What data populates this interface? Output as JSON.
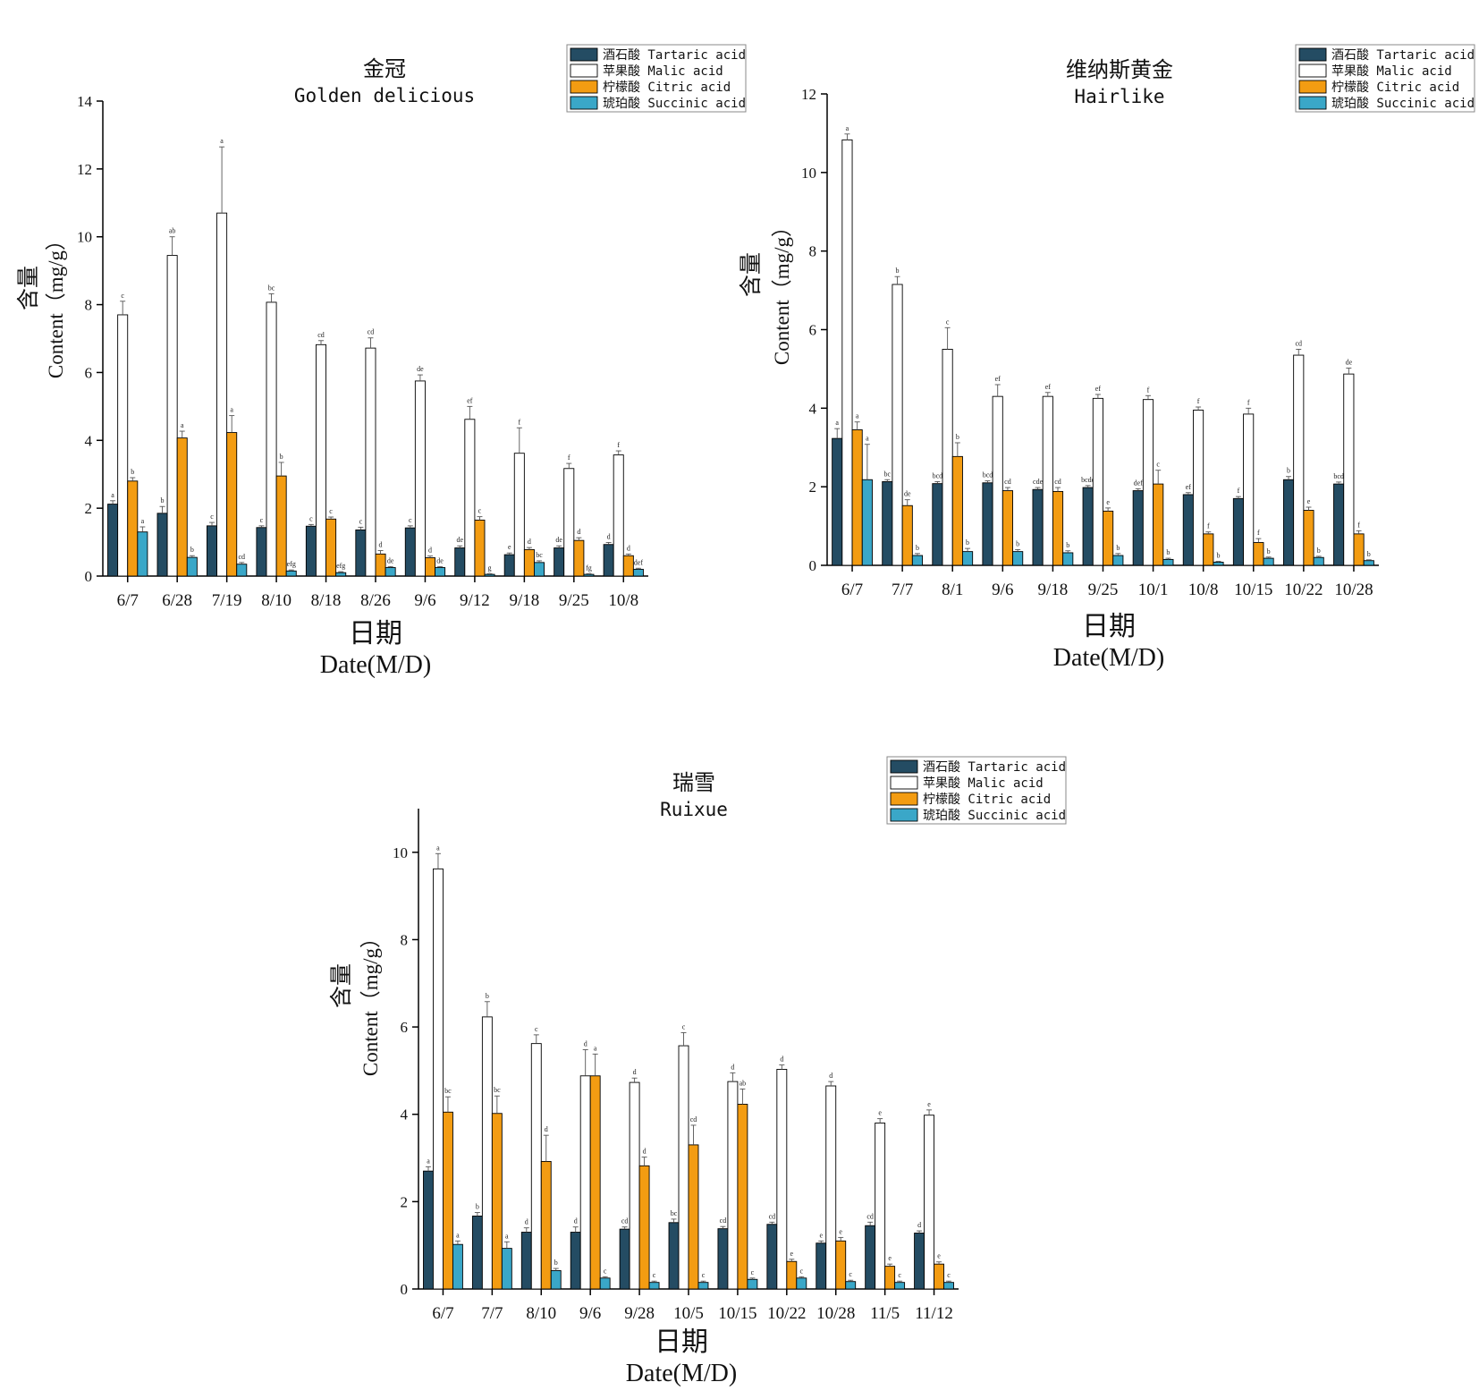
{
  "legend": {
    "items": [
      {
        "label": "酒石酸 Tartaric acid",
        "color": "#244c63"
      },
      {
        "label": "苹果酸 Malic acid",
        "color": "#ffffff"
      },
      {
        "label": "柠檬酸 Citric acid",
        "color": "#f39c12"
      },
      {
        "label": "琥珀酸 Succinic acid",
        "color": "#3aa7c8"
      }
    ]
  },
  "chart_data": [
    {
      "type": "bar",
      "title": "金冠",
      "subtitle": "Golden delicious",
      "ylabel_cn": "含量",
      "ylabel": "Content（mg/g）",
      "xlabel_cn": "日期",
      "xlabel": "Date(M/D)",
      "ylim": [
        0,
        14
      ],
      "yticks": [
        "0",
        "2",
        "4",
        "6",
        "8",
        "10",
        "12",
        "14"
      ],
      "categories": [
        "6/7",
        "6/28",
        "7/19",
        "8/10",
        "8/18",
        "8/26",
        "9/6",
        "9/12",
        "9/18",
        "9/25",
        "10/8"
      ],
      "series": [
        {
          "name": "酒石酸 Tartaric acid",
          "values": [
            2.12,
            1.85,
            1.48,
            1.43,
            1.47,
            1.36,
            1.42,
            0.83,
            0.63,
            0.83,
            0.93
          ],
          "errors": [
            0.1,
            0.2,
            0.1,
            0.05,
            0.05,
            0.08,
            0.06,
            0.06,
            0.05,
            0.06,
            0.06
          ],
          "letters": [
            "a",
            "b",
            "c",
            "c",
            "c",
            "c",
            "c",
            "de",
            "e",
            "de",
            "d"
          ]
        },
        {
          "name": "苹果酸 Malic acid",
          "values": [
            7.7,
            9.45,
            10.7,
            8.07,
            6.82,
            6.72,
            5.75,
            4.62,
            3.62,
            3.17,
            3.57
          ],
          "errors": [
            0.4,
            0.55,
            1.95,
            0.25,
            0.12,
            0.3,
            0.18,
            0.38,
            0.75,
            0.15,
            0.12
          ],
          "letters": [
            "c",
            "ab",
            "a",
            "bc",
            "cd",
            "cd",
            "de",
            "ef",
            "f",
            "f",
            "f"
          ]
        },
        {
          "name": "柠檬酸 Citric acid",
          "values": [
            2.8,
            4.07,
            4.23,
            2.95,
            1.68,
            0.65,
            0.54,
            1.65,
            0.78,
            1.05,
            0.6
          ],
          "errors": [
            0.1,
            0.2,
            0.5,
            0.4,
            0.06,
            0.1,
            0.05,
            0.1,
            0.06,
            0.08,
            0.05
          ],
          "letters": [
            "b",
            "a",
            "a",
            "b",
            "c",
            "d",
            "d",
            "c",
            "d",
            "d",
            "d"
          ]
        },
        {
          "name": "琥珀酸 Succinic acid",
          "values": [
            1.3,
            0.55,
            0.35,
            0.15,
            0.1,
            0.25,
            0.25,
            0.05,
            0.4,
            0.05,
            0.2
          ],
          "errors": [
            0.15,
            0.05,
            0.05,
            0.03,
            0.03,
            0.03,
            0.03,
            0.02,
            0.05,
            0.02,
            0.03
          ],
          "letters": [
            "a",
            "b",
            "cd",
            "efg",
            "efg",
            "de",
            "de",
            "g",
            "bc",
            "fg",
            "def"
          ]
        }
      ]
    },
    {
      "type": "bar",
      "title": "维纳斯黄金",
      "subtitle": "Hairlike",
      "ylabel_cn": "含量",
      "ylabel": "Content（mg/g）",
      "xlabel_cn": "日期",
      "xlabel": "Date(M/D)",
      "ylim": [
        0,
        12
      ],
      "yticks": [
        "0",
        "2",
        "4",
        "6",
        "8",
        "10",
        "12"
      ],
      "categories": [
        "6/7",
        "7/7",
        "8/1",
        "9/6",
        "9/18",
        "9/25",
        "10/1",
        "10/8",
        "10/15",
        "10/22",
        "10/28"
      ],
      "series": [
        {
          "name": "酒石酸 Tartaric acid",
          "values": [
            3.23,
            2.13,
            2.08,
            2.1,
            1.93,
            1.98,
            1.9,
            1.8,
            1.7,
            2.18,
            2.07
          ],
          "errors": [
            0.25,
            0.05,
            0.05,
            0.05,
            0.05,
            0.05,
            0.05,
            0.05,
            0.05,
            0.08,
            0.05
          ],
          "letters": [
            "a",
            "bc",
            "bcd",
            "bcd",
            "cde",
            "bcde",
            "def",
            "ef",
            "f",
            "b",
            "bcd"
          ]
        },
        {
          "name": "苹果酸 Malic acid",
          "values": [
            10.83,
            7.15,
            5.5,
            4.3,
            4.3,
            4.25,
            4.22,
            3.95,
            3.85,
            5.35,
            4.87
          ],
          "errors": [
            0.15,
            0.2,
            0.55,
            0.3,
            0.1,
            0.1,
            0.1,
            0.08,
            0.15,
            0.15,
            0.15
          ],
          "letters": [
            "a",
            "b",
            "c",
            "ef",
            "ef",
            "ef",
            "f",
            "f",
            "f",
            "cd",
            "de"
          ]
        },
        {
          "name": "柠檬酸 Citric acid",
          "values": [
            3.45,
            1.52,
            2.77,
            1.9,
            1.88,
            1.38,
            2.07,
            0.8,
            0.58,
            1.4,
            0.8
          ],
          "errors": [
            0.2,
            0.15,
            0.35,
            0.08,
            0.1,
            0.08,
            0.35,
            0.05,
            0.1,
            0.08,
            0.08
          ],
          "letters": [
            "a",
            "de",
            "b",
            "cd",
            "cd",
            "e",
            "c",
            "f",
            "f",
            "e",
            "f"
          ]
        },
        {
          "name": "琥珀酸 Succinic acid",
          "values": [
            2.18,
            0.25,
            0.35,
            0.35,
            0.32,
            0.25,
            0.15,
            0.08,
            0.18,
            0.2,
            0.12
          ],
          "errors": [
            0.9,
            0.05,
            0.08,
            0.05,
            0.05,
            0.05,
            0.03,
            0.02,
            0.03,
            0.03,
            0.02
          ],
          "letters": [
            "a",
            "b",
            "b",
            "b",
            "b",
            "b",
            "b",
            "b",
            "b",
            "b",
            "b"
          ]
        }
      ]
    },
    {
      "type": "bar",
      "title": "瑞雪",
      "subtitle": "Ruixue",
      "ylabel_cn": "含量",
      "ylabel": "Content（mg/g）",
      "xlabel_cn": "日期",
      "xlabel": "Date(M/D)",
      "ylim": [
        0,
        11
      ],
      "yticks": [
        "0",
        "2",
        "4",
        "6",
        "8",
        "10"
      ],
      "categories": [
        "6/7",
        "7/7",
        "8/10",
        "9/6",
        "9/28",
        "10/5",
        "10/15",
        "10/22",
        "10/28",
        "11/5",
        "11/12"
      ],
      "series": [
        {
          "name": "酒石酸 Tartaric acid",
          "values": [
            2.7,
            1.67,
            1.3,
            1.3,
            1.37,
            1.52,
            1.38,
            1.48,
            1.05,
            1.45,
            1.28
          ],
          "errors": [
            0.1,
            0.08,
            0.1,
            0.12,
            0.05,
            0.08,
            0.05,
            0.05,
            0.05,
            0.08,
            0.05
          ],
          "letters": [
            "a",
            "b",
            "d",
            "d",
            "cd",
            "bc",
            "cd",
            "cd",
            "e",
            "cd",
            "d"
          ]
        },
        {
          "name": "苹果酸 Malic acid",
          "values": [
            9.62,
            6.23,
            5.62,
            4.88,
            4.73,
            5.57,
            4.75,
            5.03,
            4.65,
            3.8,
            3.98
          ],
          "errors": [
            0.35,
            0.35,
            0.2,
            0.6,
            0.1,
            0.3,
            0.2,
            0.1,
            0.1,
            0.1,
            0.12
          ],
          "letters": [
            "a",
            "b",
            "c",
            "d",
            "d",
            "c",
            "d",
            "d",
            "d",
            "e",
            "e"
          ]
        },
        {
          "name": "柠檬酸 Citric acid",
          "values": [
            4.05,
            4.02,
            2.92,
            4.88,
            2.82,
            3.3,
            4.23,
            0.63,
            1.1,
            0.52,
            0.57
          ],
          "errors": [
            0.35,
            0.4,
            0.6,
            0.5,
            0.2,
            0.45,
            0.35,
            0.05,
            0.08,
            0.05,
            0.05
          ],
          "letters": [
            "bc",
            "bc",
            "d",
            "a",
            "d",
            "cd",
            "ab",
            "e",
            "e",
            "e",
            "e"
          ]
        },
        {
          "name": "琥珀酸 Succinic acid",
          "values": [
            1.02,
            0.93,
            0.42,
            0.25,
            0.15,
            0.15,
            0.22,
            0.25,
            0.17,
            0.15,
            0.15
          ],
          "errors": [
            0.08,
            0.15,
            0.05,
            0.03,
            0.03,
            0.03,
            0.03,
            0.03,
            0.03,
            0.03,
            0.03
          ],
          "letters": [
            "a",
            "a",
            "b",
            "c",
            "c",
            "c",
            "c",
            "c",
            "c",
            "c",
            "c"
          ]
        }
      ]
    }
  ]
}
